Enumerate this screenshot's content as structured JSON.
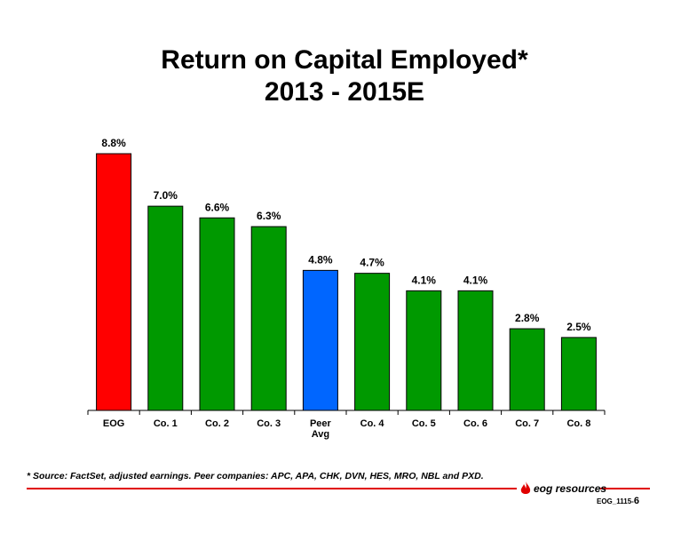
{
  "title_line1": "Return on Capital Employed*",
  "title_line2": "2013 - 2015E",
  "footnote": "* Source: FactSet, adjusted earnings. Peer companies: APC, APA, CHK, DVN, HES, MRO, NBL and PXD.",
  "logo": {
    "text": "eog resources",
    "icon": "flame-drop-icon"
  },
  "slide_id": "EOG_1115-",
  "slide_number": "6",
  "colors": {
    "eog": "#ff0000",
    "company": "#009900",
    "peer_avg": "#0066ff",
    "rule": "#e00000"
  },
  "chart_data": {
    "type": "bar",
    "title": "Return on Capital Employed* 2013 - 2015E",
    "categories": [
      "EOG",
      "Co. 1",
      "Co. 2",
      "Co. 3",
      "Peer Avg",
      "Co. 4",
      "Co. 5",
      "Co. 6",
      "Co. 7",
      "Co. 8"
    ],
    "values": [
      8.8,
      7.0,
      6.6,
      6.3,
      4.8,
      4.7,
      4.1,
      4.1,
      2.8,
      2.5
    ],
    "labels": [
      "8.8%",
      "7.0%",
      "6.6%",
      "6.3%",
      "4.8%",
      "4.7%",
      "4.1%",
      "4.1%",
      "2.8%",
      "2.5%"
    ],
    "bar_colors": [
      "#ff0000",
      "#009900",
      "#009900",
      "#009900",
      "#0066ff",
      "#009900",
      "#009900",
      "#009900",
      "#009900",
      "#009900"
    ],
    "xlabel": "",
    "ylabel": "",
    "ylim": [
      0,
      8.8
    ],
    "grid": false,
    "legend": "none"
  }
}
